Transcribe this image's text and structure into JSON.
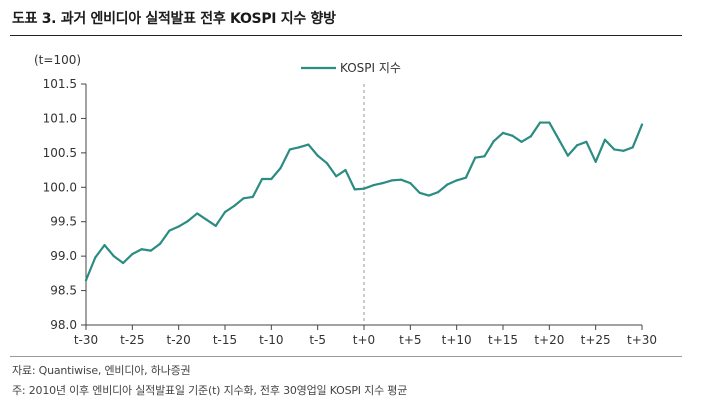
{
  "figure": {
    "title": "도표 3. 과거 엔비디아 실적발표 전후 KOSPI 지수 향방",
    "source": "자료: Quantiwise, 엔비디아, 하나증권",
    "footnote": "주: 2010년 이후 엔비디아 실적발표일 기준(t) 지수화, 전후 30영업일 KOSPI 지수 평균"
  },
  "chart_data": {
    "type": "line",
    "unit_label": "(t=100)",
    "ylim": [
      98.0,
      101.5
    ],
    "yticks": [
      "98.0",
      "98.5",
      "99.0",
      "99.5",
      "100.0",
      "100.5",
      "101.0",
      "101.5"
    ],
    "xtick_labels": [
      "t-30",
      "t-25",
      "t-20",
      "t-15",
      "t-10",
      "t-5",
      "t+0",
      "t+5",
      "t+10",
      "t+15",
      "t+20",
      "t+25",
      "t+30"
    ],
    "x": [
      "t-30",
      "t-29",
      "t-28",
      "t-27",
      "t-26",
      "t-25",
      "t-24",
      "t-23",
      "t-22",
      "t-21",
      "t-20",
      "t-19",
      "t-18",
      "t-17",
      "t-16",
      "t-15",
      "t-14",
      "t-13",
      "t-12",
      "t-11",
      "t-10",
      "t-9",
      "t-8",
      "t-7",
      "t-6",
      "t-5",
      "t-4",
      "t-3",
      "t-2",
      "t-1",
      "t+0",
      "t+1",
      "t+2",
      "t+3",
      "t+4",
      "t+5",
      "t+6",
      "t+7",
      "t+8",
      "t+9",
      "t+10",
      "t+11",
      "t+12",
      "t+13",
      "t+14",
      "t+15",
      "t+16",
      "t+17",
      "t+18",
      "t+19",
      "t+20",
      "t+21",
      "t+22",
      "t+23",
      "t+24",
      "t+25",
      "t+26",
      "t+27",
      "t+28",
      "t+29",
      "t+30"
    ],
    "series": [
      {
        "name": "KOSPI 지수",
        "color": "#2a8c82",
        "values": [
          98.65,
          98.98,
          99.16,
          99.0,
          98.9,
          99.03,
          99.1,
          99.08,
          99.18,
          99.37,
          99.43,
          99.51,
          99.62,
          99.53,
          99.44,
          99.64,
          99.73,
          99.84,
          99.86,
          100.12,
          100.12,
          100.28,
          100.55,
          100.58,
          100.62,
          100.46,
          100.35,
          100.16,
          100.25,
          99.97,
          99.98,
          100.03,
          100.06,
          100.1,
          100.11,
          100.06,
          99.92,
          99.88,
          99.93,
          100.04,
          100.1,
          100.14,
          100.43,
          100.45,
          100.67,
          100.79,
          100.75,
          100.66,
          100.74,
          100.94,
          100.94,
          100.7,
          100.46,
          100.61,
          100.66,
          100.37,
          100.69,
          100.55,
          100.53,
          100.58,
          100.91
        ]
      }
    ],
    "reference_line_at": "t+0",
    "legend_position": "top-center",
    "grid": false
  }
}
